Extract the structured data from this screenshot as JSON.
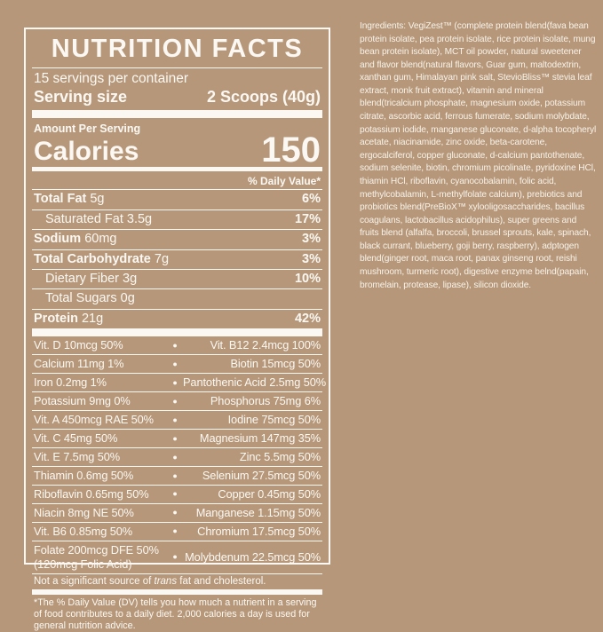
{
  "colors": {
    "background": "#b69779",
    "label_text": "#fbf8f3"
  },
  "label": {
    "title": "NUTRITION FACTS",
    "servings_per_container": "15 servings per container",
    "serving_size_label": "Serving size",
    "serving_size_value": "2 Scoops (40g)",
    "amount_per_serving": "Amount Per Serving",
    "calories_label": "Calories",
    "calories_value": "150",
    "daily_value_header": "% Daily Value*",
    "macro_rows": [
      {
        "name": "Total Fat",
        "amount": "5g",
        "dv": "6%",
        "indent": false
      },
      {
        "name": "Saturated Fat",
        "amount": "3.5g",
        "dv": "17%",
        "indent": true
      },
      {
        "name": "Sodium",
        "amount": "60mg",
        "dv": "3%",
        "indent": false
      },
      {
        "name": "Total Carbohydrate",
        "amount": "7g",
        "dv": "3%",
        "indent": false
      },
      {
        "name": "Dietary Fiber",
        "amount": "3g",
        "dv": "10%",
        "indent": true
      },
      {
        "name": "Total Sugars",
        "amount": "0g",
        "dv": "",
        "indent": true
      },
      {
        "name": "Protein",
        "amount": "21g",
        "dv": "42%",
        "indent": false
      }
    ],
    "bullet_glyph": "●",
    "micro_rows": [
      {
        "left": "Vit. D 10mcg 50%",
        "right": "Vit. B12 2.4mcg 100%"
      },
      {
        "left": "Calcium 11mg 1%",
        "right": "Biotin 15mcg 50%"
      },
      {
        "left": "Iron 0.2mg 1%",
        "right": "Pantothenic Acid 2.5mg 50%"
      },
      {
        "left": "Potassium 9mg 0%",
        "right": "Phosphorus 75mg 6%"
      },
      {
        "left": "Vit. A 450mcg RAE 50%",
        "right": "Iodine 75mcg 50%"
      },
      {
        "left": "Vit. C 45mg 50%",
        "right": "Magnesium 147mg 35%"
      },
      {
        "left": "Vit. E 7.5mg 50%",
        "right": "Zinc 5.5mg 50%"
      },
      {
        "left": "Thiamin 0.6mg 50%",
        "right": "Selenium 27.5mcg 50%"
      },
      {
        "left": "Riboflavin 0.65mg 50%",
        "right": "Copper 0.45mg 50%"
      },
      {
        "left": "Niacin 8mg NE 50%",
        "right": "Manganese 1.15mg 50%"
      },
      {
        "left": "Vit. B6 0.85mg 50%",
        "right": "Chromium 17.5mcg 50%"
      },
      {
        "left": "Folate 200mcg DFE 50% (120mcg Folic Acid)",
        "right": "Molybdenum 22.5mcg 50%"
      }
    ],
    "trans_note_pre": "Not a significant source of ",
    "trans_note_italic": "trans",
    "trans_note_post": " fat and cholesterol.",
    "footnote": "*The % Daily Value (DV) tells you how much a nutrient in a serving of food contributes to a daily diet. 2,000 calories a day is used for general nutrition advice."
  },
  "ingredients": {
    "text": "Ingredients: VegiZest™ (complete protein blend(fava bean protein isolate, pea protein isolate, rice protein isolate, mung bean protein isolate), MCT oil powder, natural sweetener and flavor blend(natural flavors, Guar gum, maltodextrin, xanthan gum, Himalayan pink salt, StevioBliss™ stevia leaf extract, monk fruit extract), vitamin and mineral blend(tricalcium phosphate, magnesium oxide, potassium citrate, ascorbic acid, ferrous fumerate, sodium molybdate, potassium iodide, manganese gluconate, d-alpha tocopheryl acetate, niacinamide, zinc oxide, beta-carotene, ergocalciferol, copper gluconate, d-calcium pantothenate, sodium selenite, biotin, chromium picolinate, pyridoxine HCl, thiamin HCl, riboflavin, cyanocobalamin, folic acid, methylcobalamin, L-methylfolate calcium), prebiotics and probiotics blend(PreBioX™ xylooligosaccharides, bacillus coagulans, lactobacillus acidophilus), super greens and fruits blend (alfalfa, broccoli, brussel sprouts, kale, spinach, black currant, blueberry, goji berry, raspberry), adptogen blend(ginger root, maca root, panax ginseng root, reishi mushroom, turmeric root), digestive enzyme belnd(papain, bromelain, protease, lipase), silicon dioxide."
  }
}
